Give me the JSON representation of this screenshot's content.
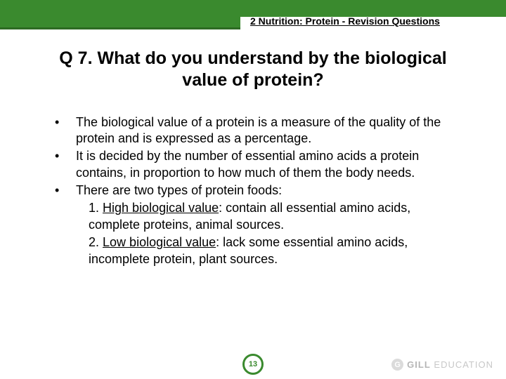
{
  "header": {
    "tab_label": "2 Nutrition: Protein - Revision Questions",
    "bar_color": "#3a8a2e",
    "bar_border_color": "#2d6b23"
  },
  "question": {
    "title": "Q 7. What do you understand by the biological value of protein?",
    "title_fontsize": 25,
    "title_color": "#000000"
  },
  "bullets": [
    "The biological value of a protein is a measure of the quality of the protein and is expressed as a percentage.",
    "It is decided by the number of essential amino acids a protein contains, in proportion to how much of them the body needs.",
    "There are two types of protein foods:"
  ],
  "sublist": [
    {
      "num": "1.",
      "label": "High biological value",
      "rest": ": contain all essential amino acids, complete proteins, animal sources."
    },
    {
      "num": "2.",
      "label": "Low biological value",
      "rest": ": lack some essential amino acids, incomplete protein, plant sources."
    }
  ],
  "body": {
    "fontsize": 18,
    "color": "#000000"
  },
  "footer": {
    "page_number": "13",
    "badge_border_color": "#3a8a2e",
    "brand_letter": "G",
    "brand_bold": "GILL",
    "brand_light": " EDUCATION"
  },
  "colors": {
    "background": "#ffffff"
  }
}
